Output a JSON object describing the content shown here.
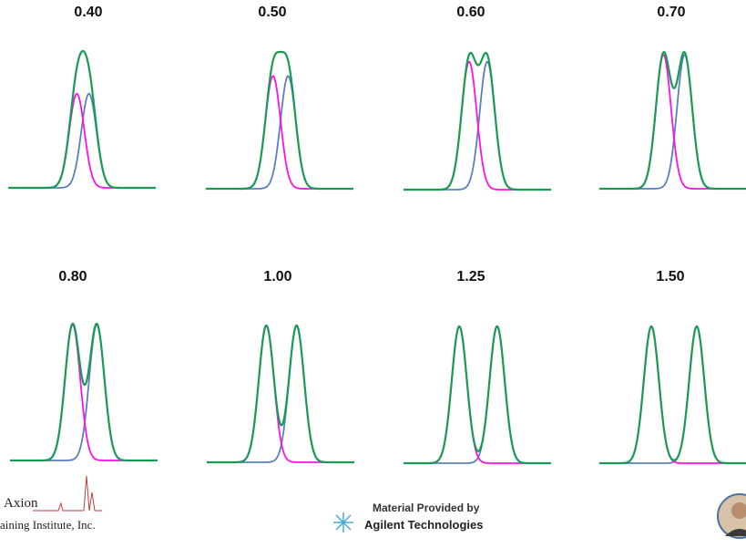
{
  "panels": [
    {
      "label": "0.40"
    },
    {
      "label": "0.50"
    },
    {
      "label": "0.60"
    },
    {
      "label": "0.70"
    },
    {
      "label": "0.80"
    },
    {
      "label": "1.00"
    },
    {
      "label": "1.25"
    },
    {
      "label": "1.50"
    }
  ],
  "footer": {
    "logo_top": "Axion",
    "logo_bottom": "aining Institute, Inc.",
    "credit_top": "Material Provided by",
    "credit_bottom": "Agilent Technologies"
  }
}
